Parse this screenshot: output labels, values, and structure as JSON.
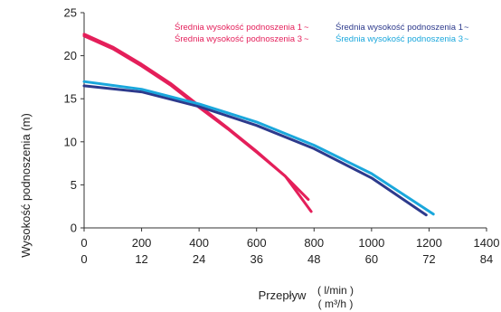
{
  "chart_data": {
    "type": "line",
    "ylabel": "Wysokość podnoszenia (m)",
    "xlabel": "Przepływ",
    "x_unit_primary": "( l/min )",
    "x_unit_secondary": "( m³/h )",
    "x_ticks_primary": [
      "0",
      "200",
      "400",
      "600",
      "800",
      "1000",
      "1200",
      "1400"
    ],
    "x_ticks_secondary": [
      "0",
      "12",
      "24",
      "36",
      "48",
      "60",
      "72",
      "84"
    ],
    "y_ticks": [
      "0",
      "5",
      "10",
      "15",
      "20",
      "25"
    ],
    "xlim": [
      0,
      1400
    ],
    "ylim": [
      0,
      25
    ],
    "grid": false,
    "legend_position": "top",
    "series": [
      {
        "name": "Średnia wysokość podnoszenia 1",
        "symbol": "~",
        "color": "#e41f5a",
        "x": [
          0,
          100,
          200,
          300,
          400,
          500,
          600,
          700,
          780
        ],
        "y": [
          22.3,
          20.8,
          18.8,
          16.6,
          14.0,
          11.5,
          8.8,
          6.0,
          3.3
        ]
      },
      {
        "name": "Średnia wysokość podnoszenia 3",
        "symbol": "~",
        "color": "#e41f5a",
        "x": [
          0,
          100,
          200,
          300,
          400,
          500,
          600,
          700,
          790
        ],
        "y": [
          22.5,
          21.0,
          19.0,
          16.8,
          14.2,
          11.6,
          8.9,
          6.0,
          1.9
        ]
      },
      {
        "name": "Średnia wysokość podnoszenia 1",
        "symbol": "~",
        "color": "#2d3a8c",
        "x": [
          0,
          200,
          400,
          600,
          800,
          1000,
          1190
        ],
        "y": [
          16.5,
          15.8,
          14.1,
          11.9,
          9.2,
          5.8,
          1.5
        ]
      },
      {
        "name": "Średnia wysokość podnoszenia 3",
        "symbol": "~",
        "color": "#1aa7dc",
        "x": [
          0,
          200,
          400,
          600,
          800,
          1000,
          1215
        ],
        "y": [
          17.0,
          16.1,
          14.4,
          12.3,
          9.6,
          6.3,
          1.6
        ]
      }
    ]
  }
}
